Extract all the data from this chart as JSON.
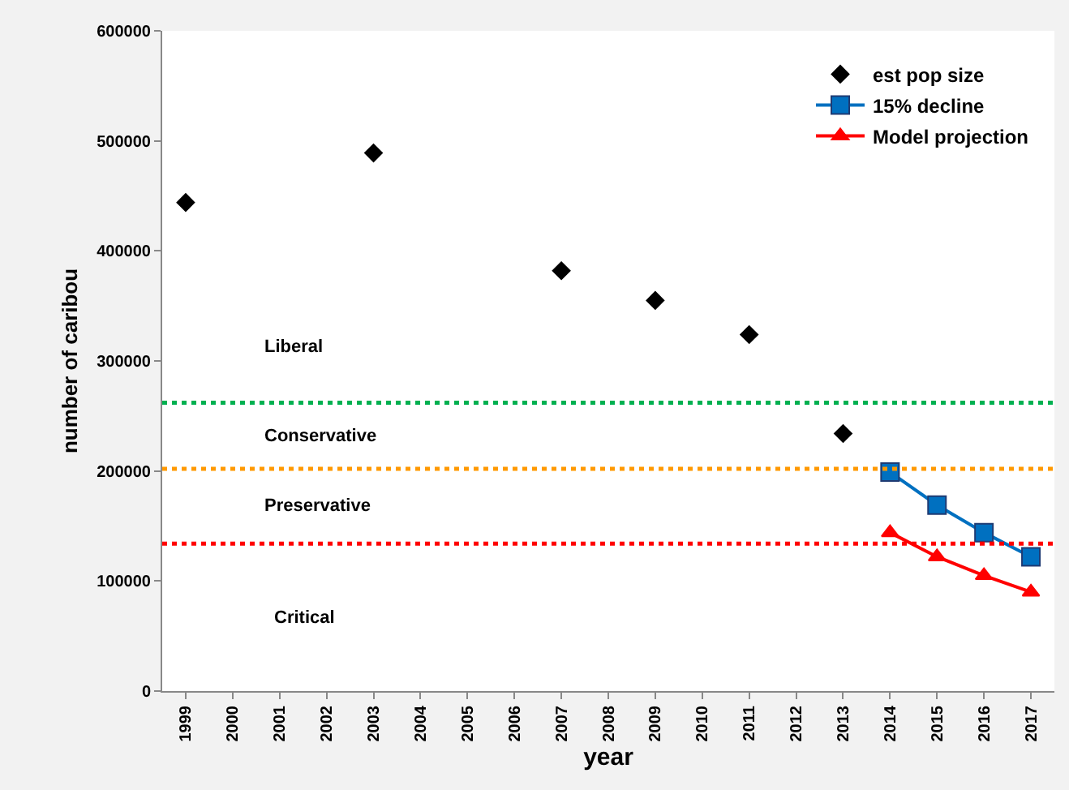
{
  "chart_data": {
    "type": "line",
    "xlabel": "year",
    "ylabel": "number of caribou",
    "categories": [
      "1999",
      "2000",
      "2001",
      "2002",
      "2003",
      "2004",
      "2005",
      "2006",
      "2007",
      "2008",
      "2009",
      "2010",
      "2011",
      "2012",
      "2013",
      "2014",
      "2015",
      "2016",
      "2017"
    ],
    "series": [
      {
        "name": "est pop size",
        "type": "scatter",
        "marker": "diamond",
        "color": "#000000",
        "values": [
          444000,
          null,
          null,
          null,
          489000,
          null,
          null,
          null,
          382000,
          null,
          355000,
          null,
          324000,
          null,
          234000,
          null,
          null,
          null,
          null
        ]
      },
      {
        "name": "15% decline",
        "marker": "square",
        "color": "#0070c0",
        "values": [
          null,
          null,
          null,
          null,
          null,
          null,
          null,
          null,
          null,
          null,
          null,
          null,
          null,
          null,
          null,
          199000,
          169000,
          144000,
          122000
        ]
      },
      {
        "name": "Model projection",
        "marker": "triangle",
        "color": "#ff0000",
        "values": [
          null,
          null,
          null,
          null,
          null,
          null,
          null,
          null,
          null,
          null,
          null,
          null,
          null,
          null,
          null,
          144000,
          122000,
          105000,
          90000
        ]
      }
    ],
    "ylim": [
      0,
      600000
    ],
    "yticks": [
      0,
      100000,
      200000,
      300000,
      400000,
      500000,
      600000
    ],
    "ref_lines": [
      {
        "axis": "y",
        "value": 262000,
        "color": "#00b050",
        "line_style": "dotted"
      },
      {
        "axis": "y",
        "value": 202000,
        "color": "#ff9900",
        "line_style": "dotted"
      },
      {
        "axis": "y",
        "value": 134000,
        "color": "#ff0000",
        "line_style": "dotted"
      }
    ],
    "annotations": [
      "Liberal",
      "Conservative",
      "Preservative",
      "Critical"
    ],
    "grid": false,
    "legend": "top right"
  }
}
